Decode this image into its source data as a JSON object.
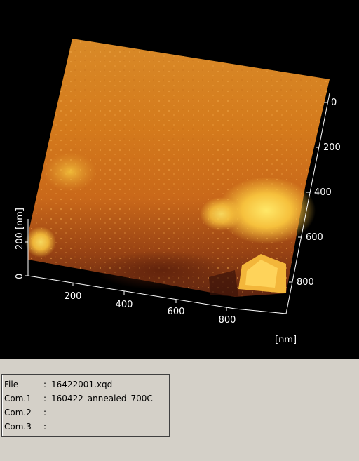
{
  "viewer": {
    "axes": {
      "y_unit": "[nm]",
      "x_ticks": [
        "200",
        "400",
        "600",
        "800"
      ],
      "y_ticks": [
        "0",
        "200",
        "400",
        "600",
        "800"
      ],
      "z_label": "200 [nm]",
      "z_ticks": [
        "0"
      ]
    },
    "colors": {
      "background": "#000000",
      "surface_dark": "#7a2a10",
      "surface_mid": "#d07418",
      "surface_high": "#f0a030",
      "surface_peak": "#ffe060"
    }
  },
  "info": {
    "rows": [
      {
        "label": "File",
        "value": "16422001.xqd"
      },
      {
        "label": "Com.1",
        "value": "160422_annealed_700C_"
      },
      {
        "label": "Com.2",
        "value": ""
      },
      {
        "label": "Com.3",
        "value": ""
      }
    ]
  }
}
